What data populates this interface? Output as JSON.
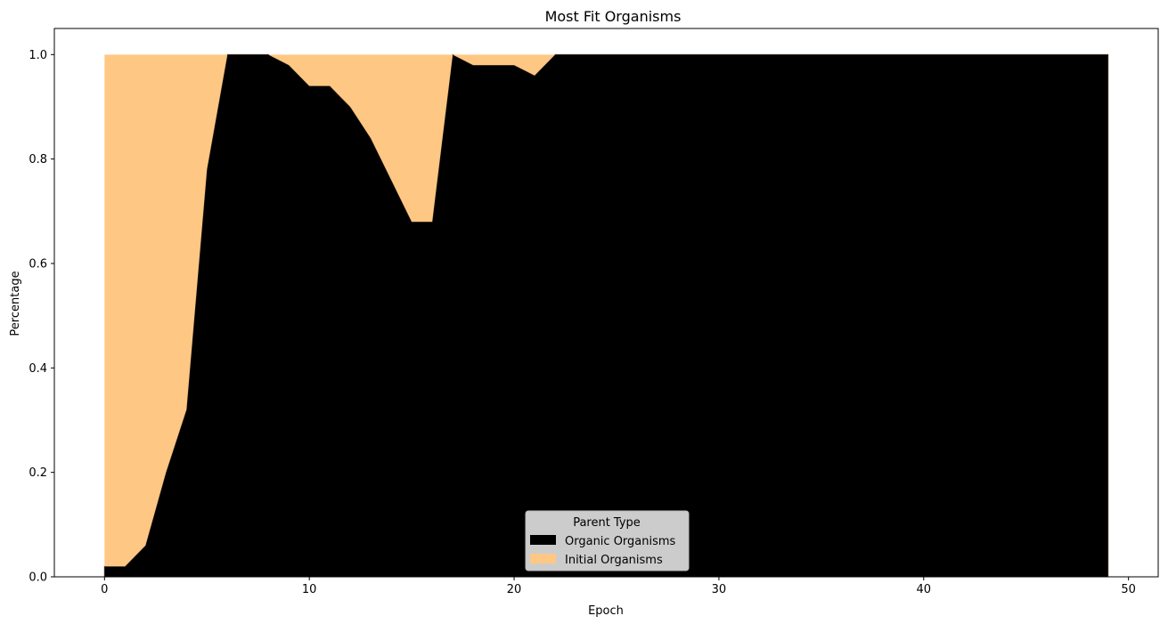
{
  "chart_data": {
    "type": "area",
    "stacked": true,
    "title": "Most Fit Organisms",
    "xlabel": "Epoch",
    "ylabel": "Percentage",
    "xlim": [
      -2.45,
      51.45
    ],
    "ylim": [
      0,
      1.05
    ],
    "xticks": [
      0,
      10,
      20,
      30,
      40,
      50
    ],
    "yticks": [
      0.0,
      0.2,
      0.4,
      0.6,
      0.8,
      1.0
    ],
    "xtick_labels": [
      "0",
      "10",
      "20",
      "30",
      "40",
      "50"
    ],
    "ytick_labels": [
      "0.0",
      "0.2",
      "0.4",
      "0.6",
      "0.8",
      "1.0"
    ],
    "grid": false,
    "legend": {
      "title": "Parent Type",
      "placement": "lower-center"
    },
    "x": [
      0,
      1,
      2,
      3,
      4,
      5,
      6,
      7,
      8,
      9,
      10,
      11,
      12,
      13,
      14,
      15,
      16,
      17,
      18,
      19,
      20,
      21,
      22,
      23,
      24,
      25,
      26,
      27,
      28,
      29,
      30,
      31,
      32,
      33,
      34,
      35,
      36,
      37,
      38,
      39,
      40,
      41,
      42,
      43,
      44,
      45,
      46,
      47,
      48,
      49
    ],
    "series": [
      {
        "name": "Organic Organisms",
        "color": "#000000",
        "values": [
          0.02,
          0.02,
          0.06,
          0.2,
          0.32,
          0.78,
          1.0,
          1.0,
          1.0,
          0.98,
          0.94,
          0.94,
          0.9,
          0.84,
          0.76,
          0.68,
          0.68,
          1.0,
          0.98,
          0.98,
          0.98,
          0.96,
          1.0,
          1.0,
          1.0,
          1.0,
          1.0,
          1.0,
          1.0,
          1.0,
          1.0,
          1.0,
          1.0,
          1.0,
          1.0,
          1.0,
          1.0,
          1.0,
          1.0,
          1.0,
          1.0,
          1.0,
          1.0,
          1.0,
          1.0,
          1.0,
          1.0,
          1.0,
          1.0,
          1.0
        ]
      },
      {
        "name": "Initial Organisms",
        "color": "#ffc784",
        "values": [
          0.98,
          0.98,
          0.94,
          0.8,
          0.68,
          0.22,
          0.0,
          0.0,
          0.0,
          0.02,
          0.06,
          0.06,
          0.1,
          0.16,
          0.24,
          0.32,
          0.32,
          0.0,
          0.02,
          0.02,
          0.02,
          0.04,
          0.0,
          0.0,
          0.0,
          0.0,
          0.0,
          0.0,
          0.0,
          0.0,
          0.0,
          0.0,
          0.0,
          0.0,
          0.0,
          0.0,
          0.0,
          0.0,
          0.0,
          0.0,
          0.0,
          0.0,
          0.0,
          0.0,
          0.0,
          0.0,
          0.0,
          0.0,
          0.0,
          0.0
        ]
      }
    ]
  }
}
